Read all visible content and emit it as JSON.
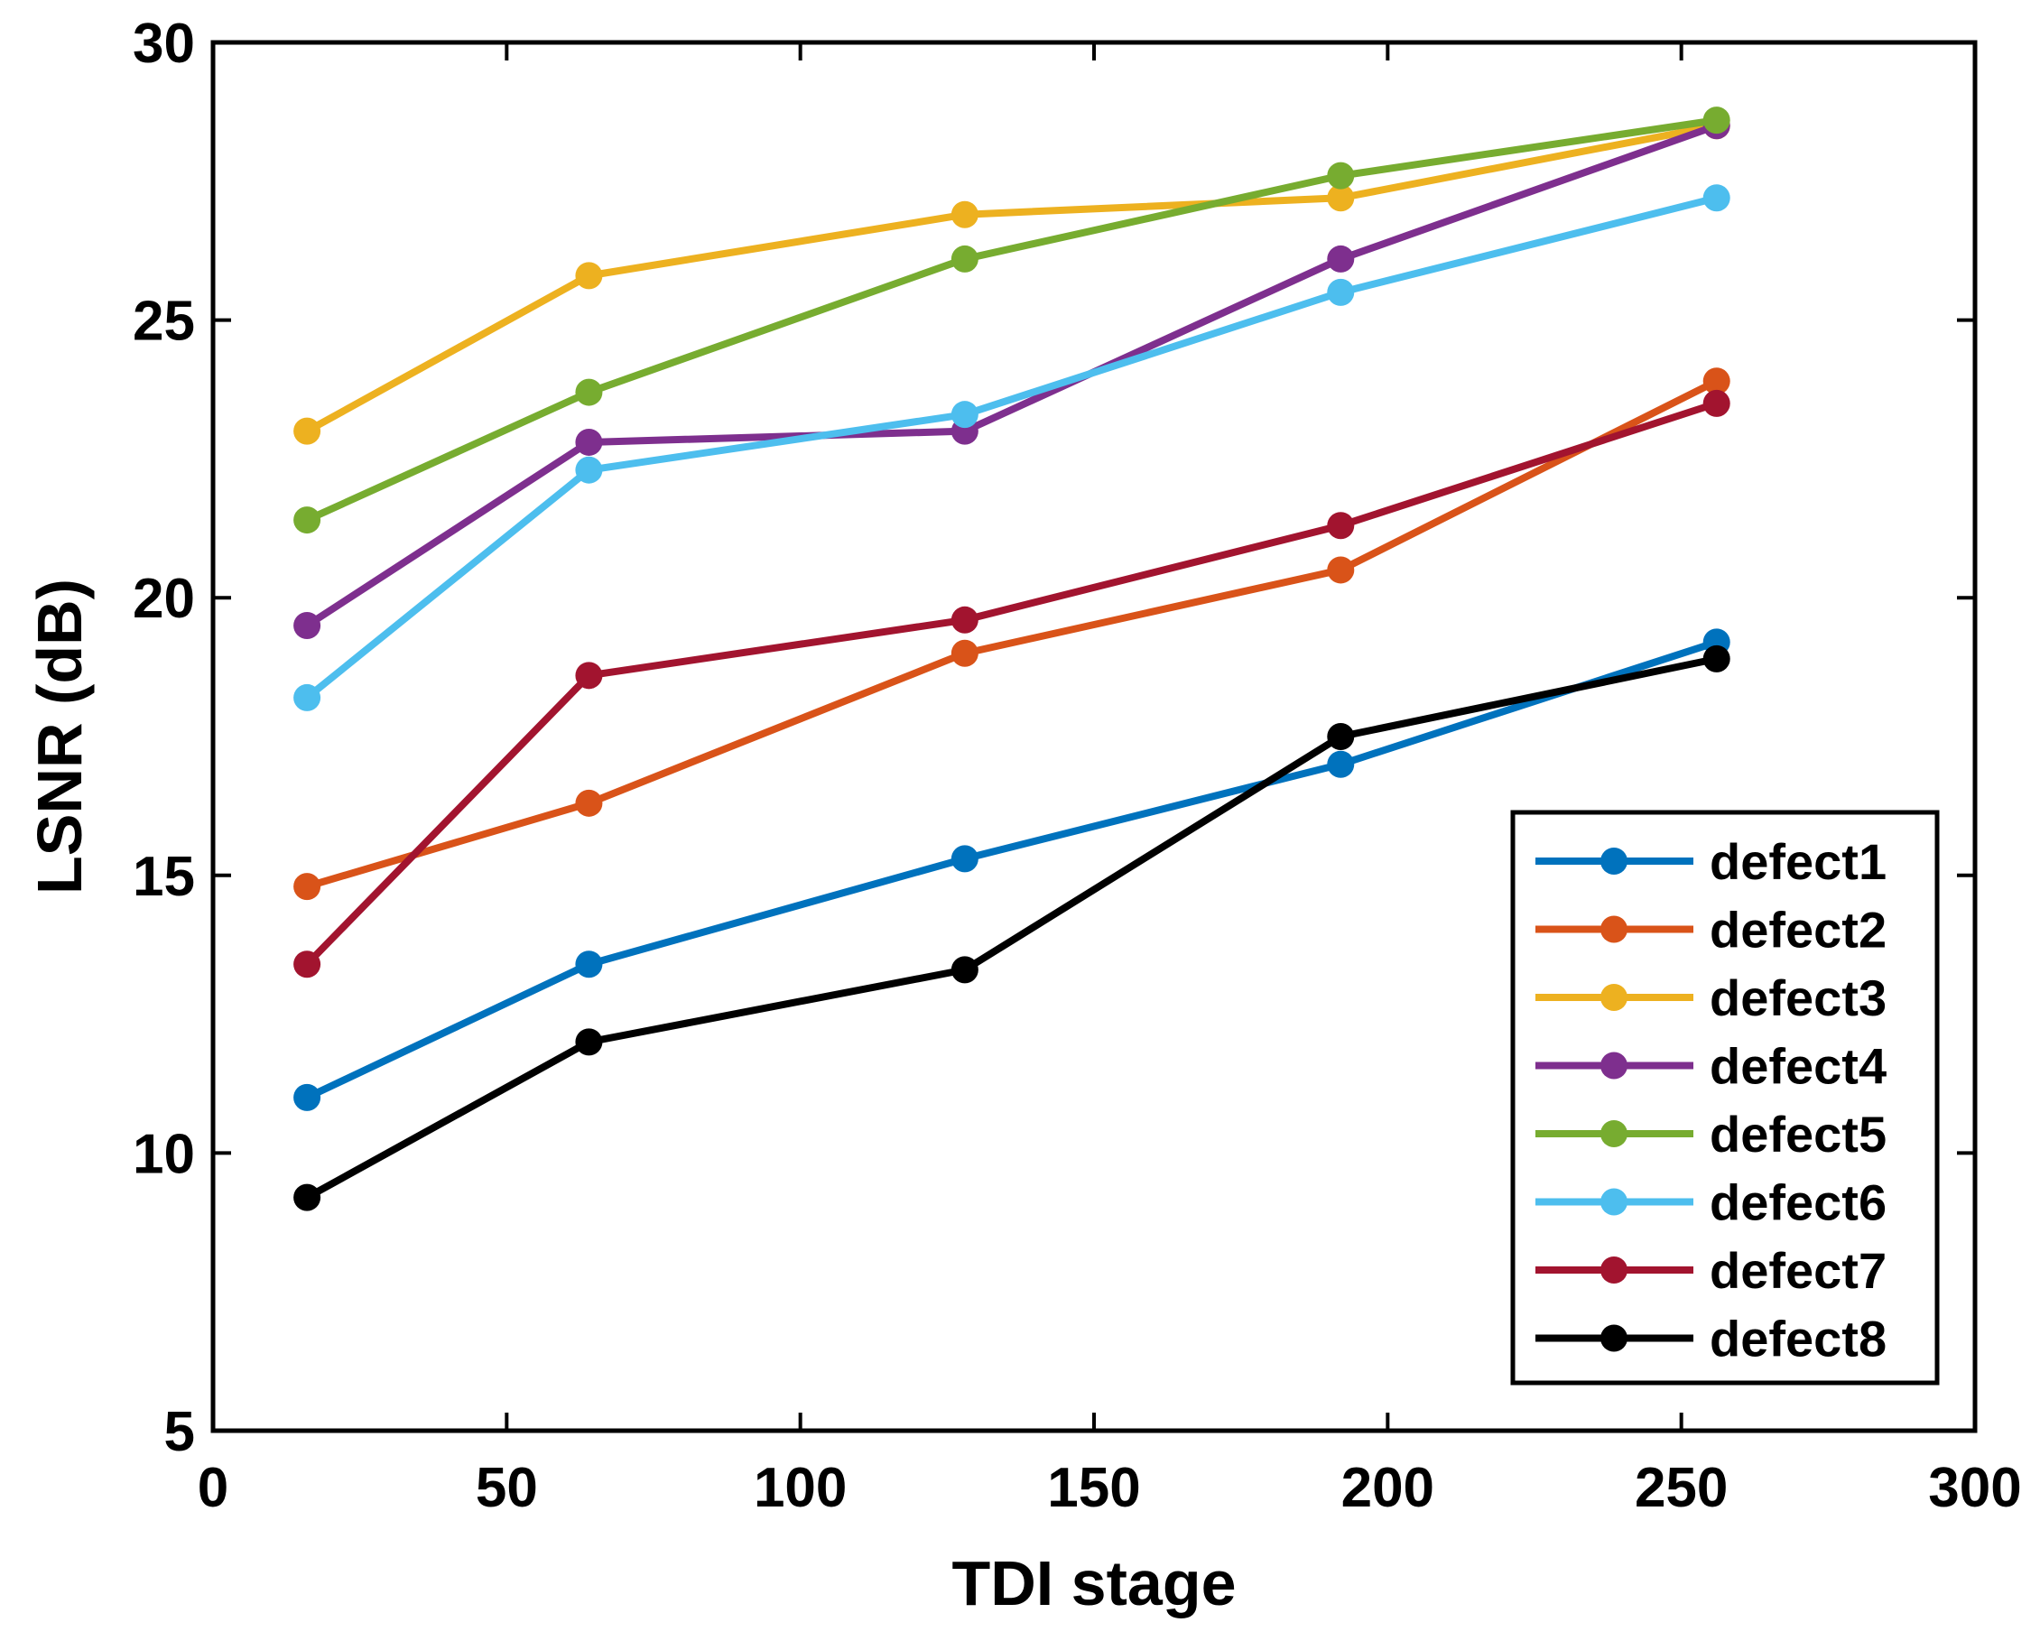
{
  "chart_data": {
    "type": "line",
    "title": "",
    "xlabel": "TDI stage",
    "ylabel": "LSNR (dB)",
    "xlim": [
      0,
      300
    ],
    "ylim": [
      5,
      30
    ],
    "xticks": [
      0,
      50,
      100,
      150,
      200,
      250,
      300
    ],
    "yticks": [
      5,
      10,
      15,
      20,
      25,
      30
    ],
    "grid": false,
    "legend_position": "bottom-right",
    "x": [
      16,
      64,
      128,
      192,
      256
    ],
    "series": [
      {
        "name": "defect1",
        "color": "#0072BD",
        "values": [
          11.0,
          13.4,
          15.3,
          17.0,
          19.2
        ]
      },
      {
        "name": "defect2",
        "color": "#D95319",
        "values": [
          14.8,
          16.3,
          19.0,
          20.5,
          23.9
        ]
      },
      {
        "name": "defect3",
        "color": "#EDB120",
        "values": [
          23.0,
          25.8,
          26.9,
          27.2,
          28.5
        ]
      },
      {
        "name": "defect4",
        "color": "#7E2F8E",
        "values": [
          19.5,
          22.8,
          23.0,
          26.1,
          28.5
        ]
      },
      {
        "name": "defect5",
        "color": "#77AC30",
        "values": [
          21.4,
          23.7,
          26.1,
          27.6,
          28.6
        ]
      },
      {
        "name": "defect6",
        "color": "#4DBEEE",
        "values": [
          18.2,
          22.3,
          23.3,
          25.5,
          27.2
        ]
      },
      {
        "name": "defect7",
        "color": "#A2142F",
        "values": [
          13.4,
          18.6,
          19.6,
          21.3,
          23.5
        ]
      },
      {
        "name": "defect8",
        "color": "#000000",
        "values": [
          9.2,
          12.0,
          13.3,
          17.5,
          18.9
        ]
      }
    ]
  }
}
